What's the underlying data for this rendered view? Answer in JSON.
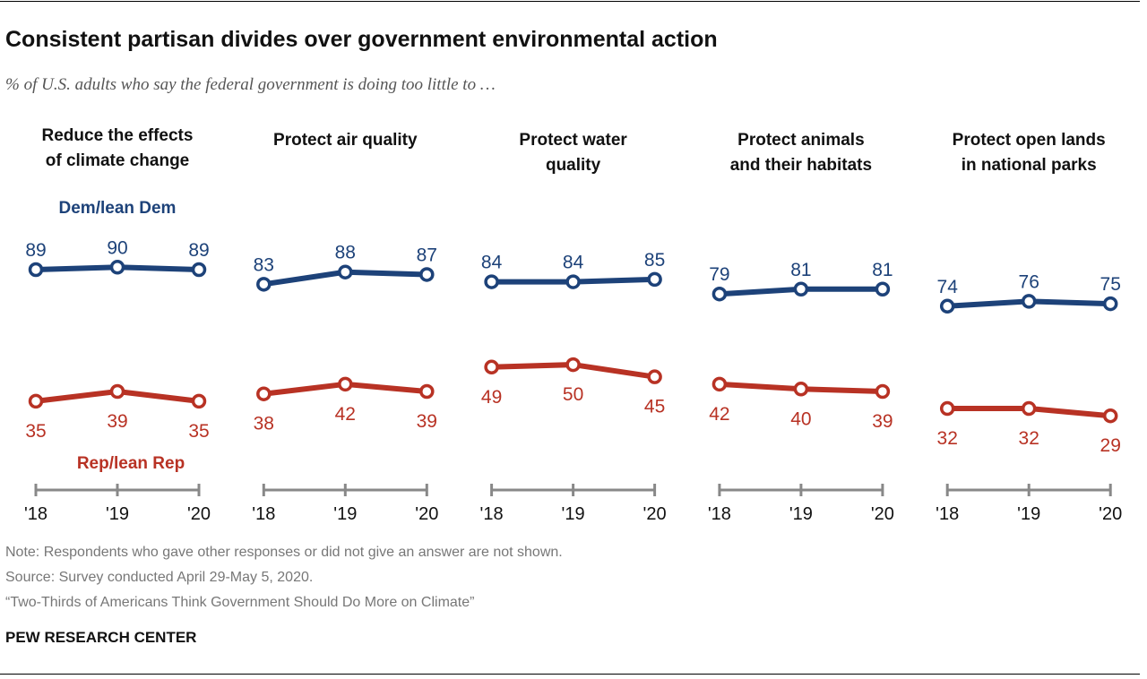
{
  "title": "Consistent partisan divides over government environmental action",
  "subtitle": "% of U.S. adults who say the federal government is doing too little to …",
  "notes": {
    "note": "Note: Respondents who gave other responses or did not give an answer are not shown.",
    "source": "Source: Survey conducted April 29-May 5, 2020.",
    "report": "“Two-Thirds of Americans Think Government Should Do More on Climate”",
    "brand": "PEW RESEARCH CENTER"
  },
  "chart_data": {
    "type": "line",
    "x": [
      "'18",
      "'19",
      "'20"
    ],
    "ylim": [
      0,
      100
    ],
    "grid": false,
    "colors": {
      "dem": "#1d4279",
      "rep": "#b83224"
    },
    "legend": {
      "dem": "Dem/lean Dem",
      "rep": "Rep/lean Rep"
    },
    "panels": [
      {
        "title": [
          "Reduce the effects",
          "of climate change"
        ],
        "dem": [
          89,
          90,
          89
        ],
        "rep": [
          35,
          39,
          35
        ]
      },
      {
        "title": [
          "Protect air quality"
        ],
        "dem": [
          83,
          88,
          87
        ],
        "rep": [
          38,
          42,
          39
        ]
      },
      {
        "title": [
          "Protect water",
          "quality"
        ],
        "dem": [
          84,
          84,
          85
        ],
        "rep": [
          49,
          50,
          45
        ]
      },
      {
        "title": [
          "Protect animals",
          "and their habitats"
        ],
        "dem": [
          79,
          81,
          81
        ],
        "rep": [
          42,
          40,
          39
        ]
      },
      {
        "title": [
          "Protect open lands",
          "in national parks"
        ],
        "dem": [
          74,
          76,
          75
        ],
        "rep": [
          32,
          32,
          29
        ]
      }
    ]
  }
}
